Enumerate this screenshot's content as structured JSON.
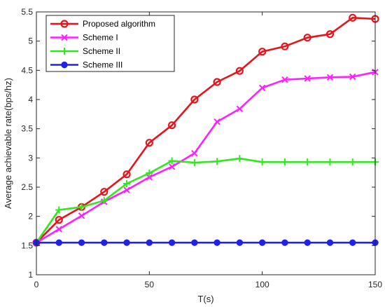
{
  "chart_data": {
    "type": "line",
    "title": "",
    "xlabel": "T(s)",
    "ylabel": "Average achievable rate(bps/hz)",
    "xlim": [
      0,
      150
    ],
    "ylim": [
      1,
      5.5
    ],
    "x_ticks": [
      0,
      50,
      100,
      150
    ],
    "y_ticks": [
      1,
      1.5,
      2,
      2.5,
      3,
      3.5,
      4,
      4.5,
      5,
      5.5
    ],
    "grid": false,
    "legend_position": "top-left",
    "x": [
      0,
      10,
      20,
      30,
      40,
      50,
      60,
      70,
      80,
      90,
      100,
      110,
      120,
      130,
      140,
      150
    ],
    "series": [
      {
        "name": "Proposed algorithm",
        "color": "#e8141c",
        "marker": "circle-open",
        "values": [
          1.55,
          1.94,
          2.16,
          2.42,
          2.72,
          3.26,
          3.56,
          4.0,
          4.3,
          4.49,
          4.82,
          4.91,
          5.06,
          5.12,
          5.4,
          5.38
        ]
      },
      {
        "name": "Scheme I",
        "color": "#ff1fff",
        "marker": "x",
        "values": [
          1.55,
          1.78,
          2.01,
          2.25,
          2.45,
          2.67,
          2.85,
          3.08,
          3.62,
          3.84,
          4.2,
          4.34,
          4.36,
          4.38,
          4.39,
          4.47
        ]
      },
      {
        "name": "Scheme II",
        "color": "#2fe81f",
        "marker": "plus",
        "values": [
          1.55,
          2.11,
          2.16,
          2.27,
          2.56,
          2.74,
          2.95,
          2.92,
          2.94,
          2.99,
          2.93,
          2.93,
          2.93,
          2.93,
          2.93,
          2.93
        ]
      },
      {
        "name": "Scheme III",
        "color": "#1f23e8",
        "marker": "circle-filled",
        "values": [
          1.55,
          1.55,
          1.55,
          1.55,
          1.55,
          1.55,
          1.55,
          1.55,
          1.55,
          1.55,
          1.55,
          1.55,
          1.55,
          1.55,
          1.55,
          1.55
        ]
      }
    ]
  }
}
